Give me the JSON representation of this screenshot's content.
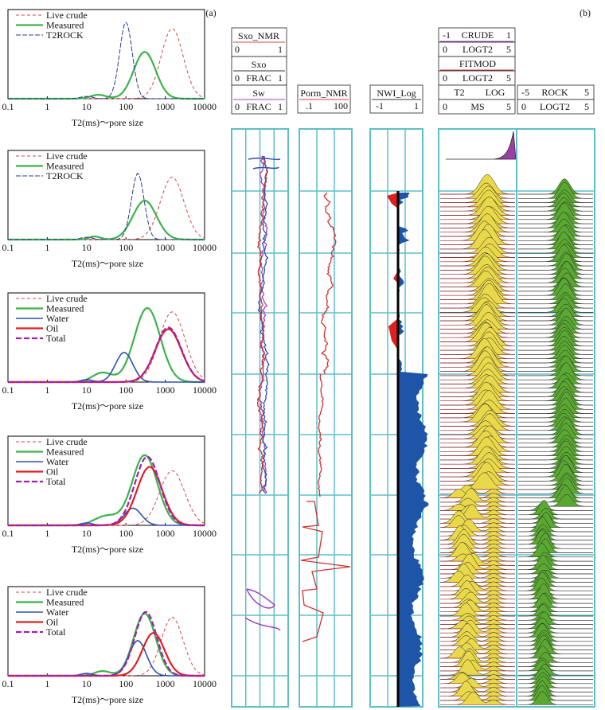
{
  "panel_labels": {
    "a": "(a)",
    "b": "(b)"
  },
  "colors": {
    "live_crude": "#d9434a",
    "measured": "#3cb34a",
    "t2rock": "#2a3b8f",
    "water": "#3050b0",
    "oil": "#e02020",
    "total": "#a020b0",
    "grid": "#5fbfc9",
    "nwi_fill": "#1f55a8",
    "fit_fill": "#e8d84a",
    "rock_fill": "#5aa832",
    "crude_fill": "#9b3ea8"
  },
  "panel_a": {
    "xlabel": "T2(ms)～pore size",
    "xticks": [
      "0.1",
      "1",
      "10",
      "100",
      "1000",
      "10000"
    ],
    "panels": [
      {
        "legend": [
          "Live crude",
          "Measured",
          "T2ROCK"
        ],
        "keys": [
          "live_crude",
          "measured",
          "t2rock"
        ]
      },
      {
        "legend": [
          "Live crude",
          "Measured",
          "T2ROCK"
        ],
        "keys": [
          "live_crude",
          "measured",
          "t2rock"
        ]
      },
      {
        "legend": [
          "Live crude",
          "Measured",
          "Water",
          "Oil",
          "Total"
        ],
        "keys": [
          "live_crude",
          "measured",
          "water",
          "oil",
          "total"
        ]
      },
      {
        "legend": [
          "Live crude",
          "Measured",
          "Water",
          "Oil",
          "Total"
        ],
        "keys": [
          "live_crude",
          "measured",
          "water",
          "oil",
          "total"
        ]
      },
      {
        "legend": [
          "Live crude",
          "Measured",
          "Water",
          "Oil",
          "Total"
        ],
        "keys": [
          "live_crude",
          "measured",
          "water",
          "oil",
          "total"
        ]
      }
    ]
  },
  "panel_b": {
    "track1": {
      "headers": [
        {
          "name": "Sxo_NMR",
          "left": "0",
          "right": "1"
        },
        {
          "name": "Sxo",
          "left": "0",
          "mid": "FRAC",
          "right": "1"
        },
        {
          "name": "Sw",
          "left": "0",
          "mid": "FRAC",
          "right": "1"
        }
      ]
    },
    "track2": {
      "name": "Porm_NMR",
      "left": ".1",
      "right": "100"
    },
    "track3": {
      "name": "NWI_Log",
      "left": "-1",
      "right": "1"
    },
    "track4": {
      "headers": [
        {
          "name": "CRUDE",
          "left": "-1",
          "right": "1"
        },
        {
          "name": "LOGT2",
          "left": "0",
          "right": "5"
        },
        {
          "name": "FITMOD",
          "left": "",
          "right": ""
        },
        {
          "name": "LOGT2",
          "left": "0",
          "right": "5"
        },
        {
          "name": "T2",
          "mid": "LOG",
          "left": "",
          "right": ""
        },
        {
          "name": "MS",
          "left": "0",
          "right": "5"
        }
      ]
    },
    "track5": {
      "headers": [
        {
          "name": "ROCK",
          "left": "-5",
          "right": "5"
        },
        {
          "name": "LOGT2",
          "left": "0",
          "right": "5"
        }
      ]
    }
  },
  "chart_data": [
    {
      "type": "line",
      "title": "",
      "xlabel": "T2(ms)～pore size",
      "xscale": "log",
      "xlim": [
        0.1,
        10000
      ],
      "series": [
        {
          "name": "Live crude",
          "peak_x": 1500,
          "peak_y": 0.9
        },
        {
          "name": "Measured",
          "peak_x": 300,
          "peak_y": 0.6
        },
        {
          "name": "T2ROCK",
          "peak_x": 100,
          "peak_y": 0.98
        }
      ]
    },
    {
      "type": "line",
      "title": "",
      "xlabel": "T2(ms)～pore size",
      "xscale": "log",
      "xlim": [
        0.1,
        10000
      ],
      "series": [
        {
          "name": "Live crude",
          "peak_x": 1500,
          "peak_y": 0.8
        },
        {
          "name": "Measured",
          "peak_x": 300,
          "peak_y": 0.5
        },
        {
          "name": "T2ROCK",
          "peak_x": 200,
          "peak_y": 0.85
        }
      ]
    },
    {
      "type": "line",
      "title": "",
      "xlabel": "T2(ms)～pore size",
      "xscale": "log",
      "xlim": [
        0.1,
        10000
      ],
      "series": [
        {
          "name": "Live crude",
          "peak_x": 1500,
          "peak_y": 0.9
        },
        {
          "name": "Measured",
          "peak_x": 350,
          "peak_y": 0.95
        },
        {
          "name": "Water",
          "peak_x": 90,
          "peak_y": 0.38
        },
        {
          "name": "Oil",
          "peak_x": 1200,
          "peak_y": 0.68
        },
        {
          "name": "Total",
          "peak_x": 1200,
          "peak_y": 0.7
        }
      ]
    },
    {
      "type": "line",
      "title": "",
      "xlabel": "T2(ms)～pore size",
      "xscale": "log",
      "xlim": [
        0.1,
        10000
      ],
      "series": [
        {
          "name": "Live crude",
          "peak_x": 1500,
          "peak_y": 0.7
        },
        {
          "name": "Measured",
          "peak_x": 300,
          "peak_y": 0.9
        },
        {
          "name": "Water",
          "peak_x": 150,
          "peak_y": 0.22
        },
        {
          "name": "Oil",
          "peak_x": 400,
          "peak_y": 0.75
        },
        {
          "name": "Total",
          "peak_x": 350,
          "peak_y": 0.88
        }
      ]
    },
    {
      "type": "line",
      "title": "",
      "xlabel": "T2(ms)～pore size",
      "xscale": "log",
      "xlim": [
        0.1,
        10000
      ],
      "series": [
        {
          "name": "Live crude",
          "peak_x": 1500,
          "peak_y": 0.75
        },
        {
          "name": "Measured",
          "peak_x": 300,
          "peak_y": 0.8
        },
        {
          "name": "Water",
          "peak_x": 200,
          "peak_y": 0.45
        },
        {
          "name": "Oil",
          "peak_x": 500,
          "peak_y": 0.55
        },
        {
          "name": "Total",
          "peak_x": 320,
          "peak_y": 0.82
        }
      ]
    }
  ]
}
